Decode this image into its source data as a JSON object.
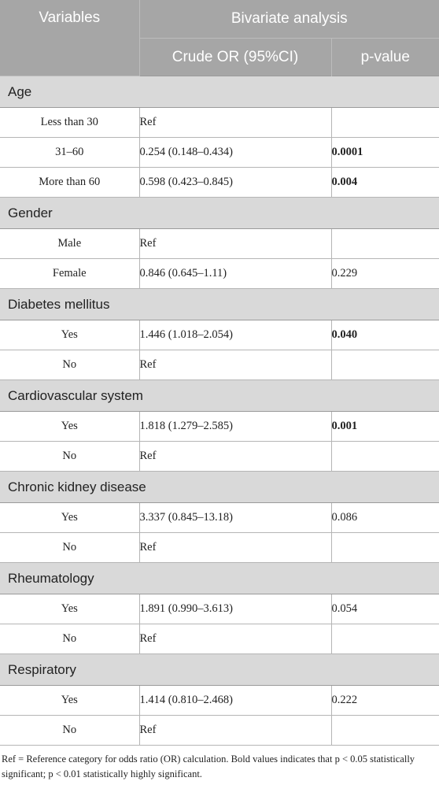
{
  "header": {
    "variables": "Variables",
    "bivariate": "Bivariate analysis",
    "crude_or": "Crude OR (95%CI)",
    "pvalue": "p-value"
  },
  "groups": [
    {
      "label": "Age",
      "rows": [
        {
          "label": "Less than 30",
          "or": "Ref",
          "p": "",
          "bold": false
        },
        {
          "label": "31–60",
          "or": "0.254 (0.148–0.434)",
          "p": "0.0001",
          "bold": true
        },
        {
          "label": "More than 60",
          "or": "0.598 (0.423–0.845)",
          "p": "0.004",
          "bold": true
        }
      ]
    },
    {
      "label": "Gender",
      "rows": [
        {
          "label": "Male",
          "or": "Ref",
          "p": "",
          "bold": false
        },
        {
          "label": "Female",
          "or": "0.846 (0.645–1.11)",
          "p": "0.229",
          "bold": false
        }
      ]
    },
    {
      "label": "Diabetes mellitus",
      "rows": [
        {
          "label": "Yes",
          "or": "1.446 (1.018–2.054)",
          "p": "0.040",
          "bold": true
        },
        {
          "label": "No",
          "or": "Ref",
          "p": "",
          "bold": false
        }
      ]
    },
    {
      "label": "Cardiovascular system",
      "rows": [
        {
          "label": "Yes",
          "or": "1.818 (1.279–2.585)",
          "p": "0.001",
          "bold": true
        },
        {
          "label": "No",
          "or": "Ref",
          "p": "",
          "bold": false
        }
      ]
    },
    {
      "label": "Chronic kidney disease",
      "rows": [
        {
          "label": "Yes",
          "or": "3.337 (0.845–13.18)",
          "p": "0.086",
          "bold": false
        },
        {
          "label": "No",
          "or": "Ref",
          "p": "",
          "bold": false
        }
      ]
    },
    {
      "label": "Rheumatology",
      "rows": [
        {
          "label": "Yes",
          "or": "1.891 (0.990–3.613)",
          "p": "0.054",
          "bold": false
        },
        {
          "label": "No",
          "or": "Ref",
          "p": "",
          "bold": false
        }
      ]
    },
    {
      "label": "Respiratory",
      "rows": [
        {
          "label": "Yes",
          "or": "1.414 (0.810–2.468)",
          "p": "0.222",
          "bold": false
        },
        {
          "label": "No",
          "or": "Ref",
          "p": "",
          "bold": false
        }
      ]
    }
  ],
  "footnote": "Ref = Reference category for odds ratio (OR) calculation. Bold values indicates that p < 0.05 statistically significant; p < 0.01 statistically highly significant."
}
